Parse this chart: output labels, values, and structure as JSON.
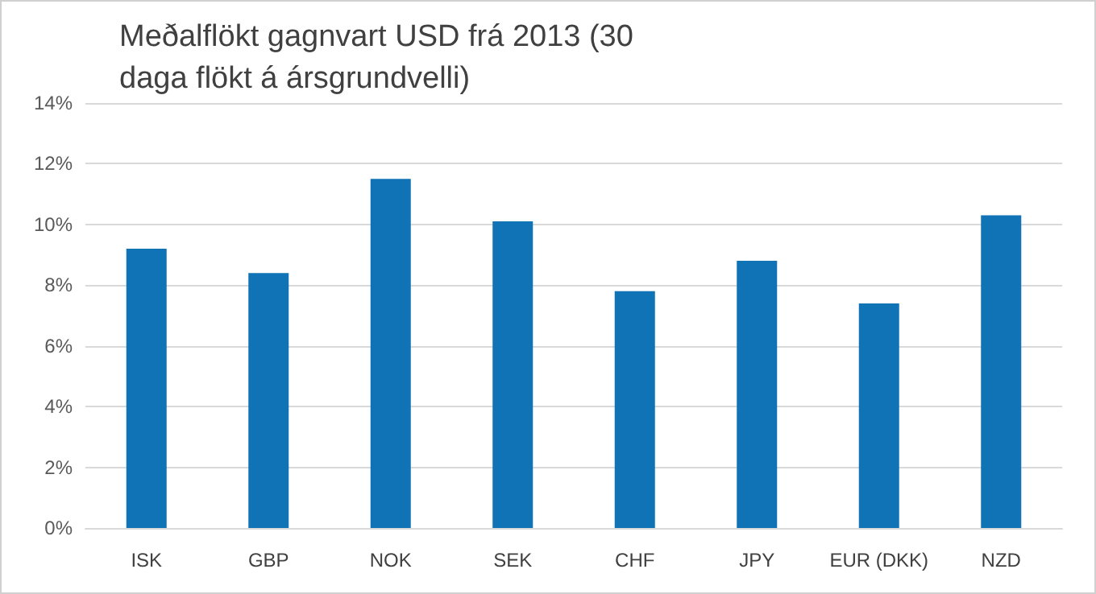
{
  "chart_data": {
    "type": "bar",
    "title": "Meðalflökt gagnvart USD frá 2013 (30 daga flökt á ársgrundvelli)",
    "categories": [
      "ISK",
      "GBP",
      "NOK",
      "SEK",
      "CHF",
      "JPY",
      "EUR (DKK)",
      "NZD"
    ],
    "values": [
      9.2,
      8.4,
      11.5,
      10.1,
      7.8,
      8.8,
      7.4,
      10.3
    ],
    "color": "#0f73b5",
    "ylim": [
      0,
      14
    ],
    "yticks": [
      {
        "value": 0,
        "label": "0%"
      },
      {
        "value": 2,
        "label": "2%"
      },
      {
        "value": 4,
        "label": "4%"
      },
      {
        "value": 6,
        "label": "6%"
      },
      {
        "value": 8,
        "label": "8%"
      },
      {
        "value": 10,
        "label": "10%"
      },
      {
        "value": 12,
        "label": "12%"
      },
      {
        "value": 14,
        "label": "14%"
      }
    ],
    "grid": "y"
  }
}
